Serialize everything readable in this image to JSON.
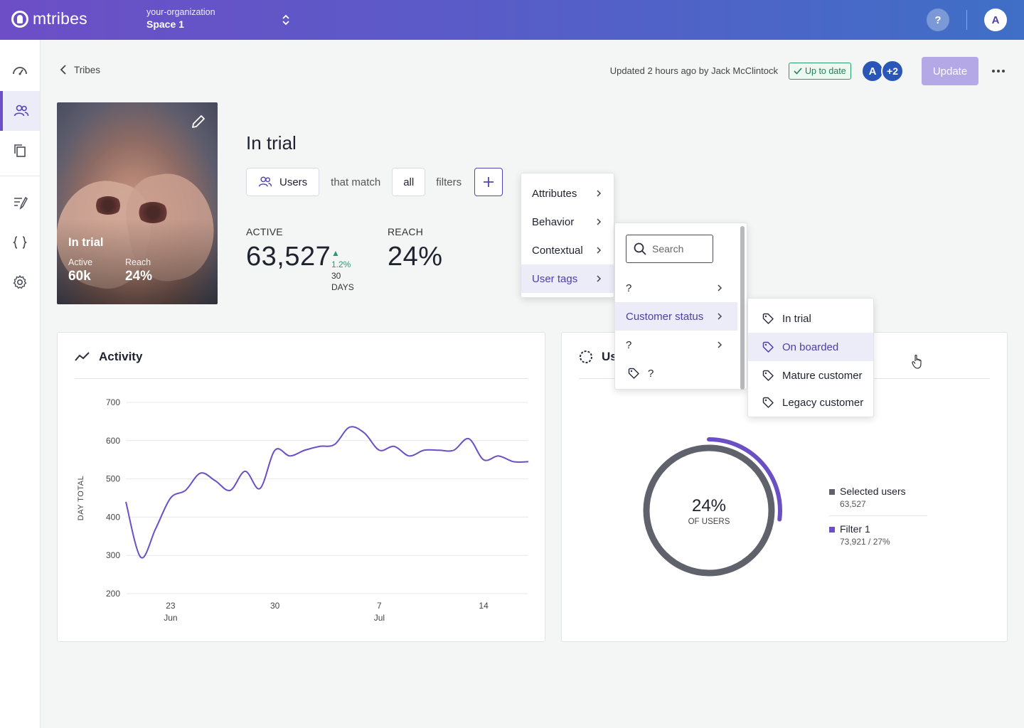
{
  "app": {
    "name": "mtribes"
  },
  "org": {
    "name": "your-organization",
    "space": "Space 1"
  },
  "topbar": {
    "help_label": "?",
    "avatar_letter": "A"
  },
  "breadcrumb": {
    "back_label": "Tribes"
  },
  "header": {
    "updated_text": "Updated 2 hours ago by Jack McClintock",
    "status_badge": "Up to date",
    "collaborator_initial": "A",
    "collaborator_more": "+2",
    "update_label": "Update"
  },
  "tribe_card": {
    "title": "In trial",
    "active_label": "Active",
    "active_value": "60k",
    "reach_label": "Reach",
    "reach_value": "24%"
  },
  "tribe": {
    "title": "In trial",
    "filter_subject": "Users",
    "that_match": "that match",
    "match_mode": "all",
    "filters_word": "filters"
  },
  "stats": {
    "active_label": "ACTIVE",
    "active_value": "63,527",
    "trend_value": "1.2%",
    "trend_period": "30 DAYS",
    "reach_label": "REACH",
    "reach_value": "24%"
  },
  "activity": {
    "title": "Activity",
    "chart_data": {
      "type": "line",
      "title": "Activity",
      "ylabel": "DAY TOTAL",
      "xlabel": "",
      "ylim": [
        200,
        700
      ],
      "yticks": [
        200,
        300,
        400,
        500,
        600,
        700
      ],
      "xticks": [
        {
          "day": "23",
          "month": "Jun"
        },
        {
          "day": "30",
          "month": ""
        },
        {
          "day": "7",
          "month": "Jul"
        },
        {
          "day": "14",
          "month": ""
        }
      ],
      "grid": true,
      "color": "#6a4fc5",
      "x": [
        "Jun 20",
        "Jun 21",
        "Jun 22",
        "Jun 23",
        "Jun 24",
        "Jun 25",
        "Jun 26",
        "Jun 27",
        "Jun 28",
        "Jun 29",
        "Jun 30",
        "Jul 1",
        "Jul 2",
        "Jul 3",
        "Jul 4",
        "Jul 5",
        "Jul 6",
        "Jul 7",
        "Jul 8",
        "Jul 9",
        "Jul 10",
        "Jul 11",
        "Jul 12",
        "Jul 13",
        "Jul 14",
        "Jul 15",
        "Jul 16",
        "Jul 17"
      ],
      "values": [
        440,
        295,
        370,
        450,
        470,
        515,
        495,
        470,
        520,
        475,
        575,
        560,
        575,
        585,
        590,
        635,
        620,
        575,
        585,
        560,
        575,
        575,
        575,
        605,
        550,
        560,
        545,
        545
      ]
    }
  },
  "users_panel": {
    "title": "Users",
    "donut_percent": "24%",
    "donut_sub": "OF USERS",
    "chart_data": {
      "type": "pie",
      "title": "Users",
      "values": [
        24,
        27
      ],
      "legend": [
        {
          "name": "Selected users",
          "value": "63,527",
          "color": "#5f626b"
        },
        {
          "name": "Filter 1",
          "value": "73,921 / 27%",
          "color": "#6a4fc5"
        }
      ]
    }
  },
  "menus": {
    "categories": [
      {
        "label": "Attributes"
      },
      {
        "label": "Behavior"
      },
      {
        "label": "Contextual"
      },
      {
        "label": "User tags"
      }
    ],
    "search_placeholder": "Search",
    "tag_groups": [
      {
        "label": "?"
      },
      {
        "label": "Customer status"
      },
      {
        "label": "?"
      },
      {
        "label": "?"
      }
    ],
    "tags": [
      {
        "label": "In trial"
      },
      {
        "label": "On boarded"
      },
      {
        "label": "Mature customer"
      },
      {
        "label": "Legacy customer"
      }
    ]
  }
}
